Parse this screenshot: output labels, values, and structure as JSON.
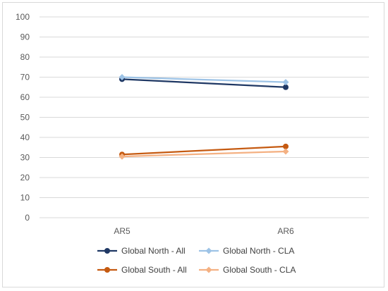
{
  "chart_data": {
    "type": "line",
    "title": "",
    "xlabel": "",
    "ylabel": "",
    "categories": [
      "AR5",
      "AR6"
    ],
    "ylim": [
      0,
      100
    ],
    "yticks": [
      0,
      10,
      20,
      30,
      40,
      50,
      60,
      70,
      80,
      90,
      100
    ],
    "grid": true,
    "legend_position": "bottom",
    "series": [
      {
        "name": "Global North - All",
        "values": [
          69,
          65
        ],
        "color": "#1f3864",
        "marker": "circle"
      },
      {
        "name": "Global North - CLA",
        "values": [
          70,
          67.5
        ],
        "color": "#9dc3e6",
        "marker": "diamond"
      },
      {
        "name": "Global South - All",
        "values": [
          31.5,
          35.5
        ],
        "color": "#c55a11",
        "marker": "circle"
      },
      {
        "name": "Global South - CLA",
        "values": [
          30.5,
          33
        ],
        "color": "#f4b183",
        "marker": "diamond"
      }
    ]
  }
}
